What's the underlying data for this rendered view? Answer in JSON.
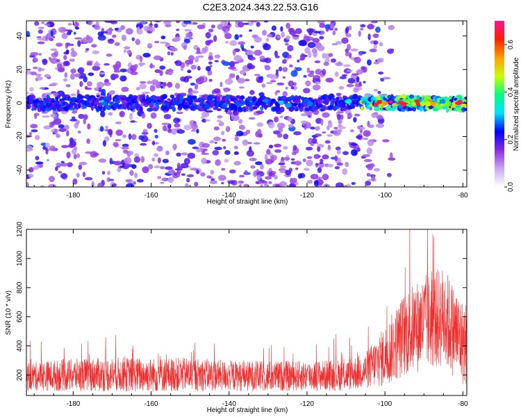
{
  "title": "C2E3.2024.343.22.53.G16",
  "chart_data": [
    {
      "type": "heatmap",
      "xlabel": "Height of straight line (km)",
      "ylabel": "Frequency (Hz)",
      "xlim": [
        -192,
        -79
      ],
      "ylim": [
        -50,
        49
      ],
      "xticks": [
        "-180",
        "-160",
        "-140",
        "-120",
        "-100",
        "-80"
      ],
      "yticks": [
        "-40",
        "-20",
        "0",
        "20",
        "40"
      ],
      "colorbar": {
        "label": "Normalized spectral amplitude",
        "range": [
          0,
          0.7
        ],
        "ticks": [
          "0.0",
          "0.2",
          "0.4",
          "0.6"
        ],
        "colormap": [
          "#ffffff",
          "#c8a8f0",
          "#8a2be2",
          "#0000ff",
          "#00e0ff",
          "#00ff80",
          "#c8ff00",
          "#ffa000",
          "#ff2000",
          "#ff1493"
        ]
      },
      "features": {
        "carrier_band_center_hz": 0,
        "carrier_band_halfwidth_hz": 4,
        "strong_signal_from_km": -106,
        "noise_fades_above_km": -103
      },
      "grid": false
    },
    {
      "type": "line",
      "xlabel": "Height of straight line (km)",
      "ylabel": "SNR (10 * v/v)",
      "xlim": [
        -192,
        -79
      ],
      "ylim": [
        60,
        1200
      ],
      "xticks": [
        "-180",
        "-160",
        "-140",
        "-120",
        "-100",
        "-80"
      ],
      "yticks": [
        "200",
        "400",
        "600",
        "800",
        "1000",
        "1200"
      ],
      "color": "#ee3030",
      "envelope": {
        "x": [
          -192,
          -180,
          -170,
          -160,
          -150,
          -140,
          -130,
          -120,
          -110,
          -105,
          -100,
          -95,
          -90,
          -85,
          -80
        ],
        "mean": [
          190,
          200,
          205,
          200,
          205,
          195,
          190,
          195,
          200,
          230,
          330,
          480,
          560,
          600,
          420
        ],
        "spread": [
          140,
          160,
          170,
          170,
          165,
          150,
          150,
          150,
          155,
          180,
          300,
          420,
          470,
          500,
          420
        ]
      },
      "grid": false
    }
  ]
}
